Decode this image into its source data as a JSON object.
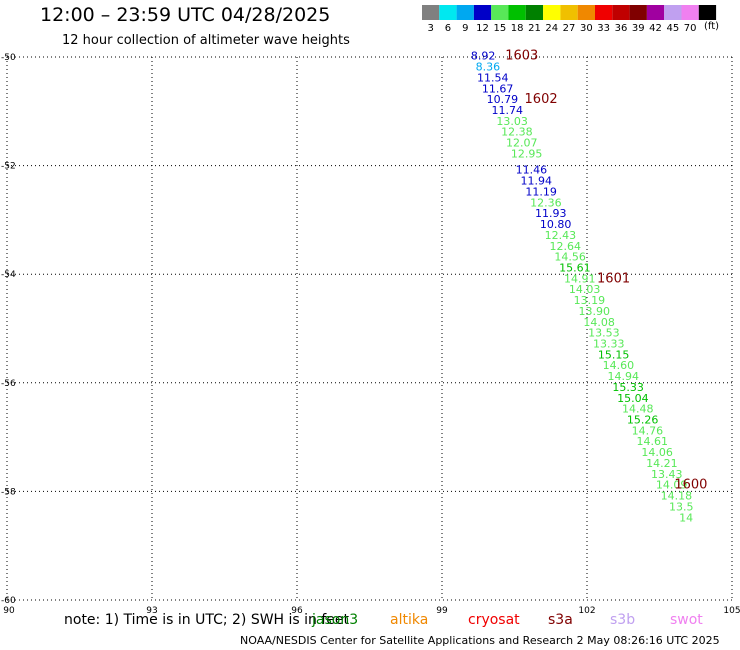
{
  "header": {
    "title": "12:00 – 23:59 UTC 04/28/2025",
    "subtitle": "12 hour collection of altimeter wave heights"
  },
  "color_scale": {
    "unit": "(ft)",
    "bins": [
      {
        "label": "3",
        "color": "#808080"
      },
      {
        "label": "6",
        "color": "#00e8f0"
      },
      {
        "label": "9",
        "color": "#00a8f0"
      },
      {
        "label": "12",
        "color": "#0000c8"
      },
      {
        "label": "15",
        "color": "#58e858"
      },
      {
        "label": "18",
        "color": "#00c000"
      },
      {
        "label": "21",
        "color": "#008000"
      },
      {
        "label": "24",
        "color": "#ffff00"
      },
      {
        "label": "27",
        "color": "#f0c000"
      },
      {
        "label": "30",
        "color": "#f08800"
      },
      {
        "label": "33",
        "color": "#f00000"
      },
      {
        "label": "36",
        "color": "#c00000"
      },
      {
        "label": "39",
        "color": "#800000"
      },
      {
        "label": "42",
        "color": "#a000a0"
      },
      {
        "label": "45",
        "color": "#c0a0f0"
      },
      {
        "label": "70",
        "color": "#f080f0"
      },
      {
        "label": "",
        "color": "#000000"
      }
    ]
  },
  "chart_data": {
    "type": "scatter",
    "xlim": [
      90,
      105
    ],
    "ylim": [
      -60,
      -50
    ],
    "x_ticks": [
      90,
      93,
      96,
      99,
      102,
      105
    ],
    "y_ticks": [
      -50,
      -52,
      -54,
      -56,
      -58,
      -60
    ],
    "x_tick_labels": [
      "90",
      "93",
      "96",
      "99",
      "102",
      "105"
    ],
    "y_tick_labels": [
      "-50",
      "-52",
      "-54",
      "-56",
      "-58",
      "-60"
    ],
    "grid": true,
    "points": [
      {
        "lon": 99.85,
        "lat": -50.05,
        "label": "8.92",
        "color": "#0000c8"
      },
      {
        "lon": 99.95,
        "lat": -50.25,
        "label": "8.36",
        "color": "#00a8f0"
      },
      {
        "lon": 100.05,
        "lat": -50.45,
        "label": "11.54",
        "color": "#0000c8"
      },
      {
        "lon": 100.15,
        "lat": -50.65,
        "label": "11.67",
        "color": "#0000c8"
      },
      {
        "lon": 100.25,
        "lat": -50.85,
        "label": "10.79",
        "color": "#0000c8"
      },
      {
        "lon": 100.35,
        "lat": -51.05,
        "label": "11.74",
        "color": "#0000c8"
      },
      {
        "lon": 100.45,
        "lat": -51.25,
        "label": "13.03",
        "color": "#58e858"
      },
      {
        "lon": 100.55,
        "lat": -51.45,
        "label": "12.38",
        "color": "#58e858"
      },
      {
        "lon": 100.65,
        "lat": -51.65,
        "label": "12.07",
        "color": "#58e858"
      },
      {
        "lon": 100.75,
        "lat": -51.85,
        "label": "12.95",
        "color": "#58e858"
      },
      {
        "lon": 100.85,
        "lat": -52.15,
        "label": "11.46",
        "color": "#0000c8"
      },
      {
        "lon": 100.95,
        "lat": -52.35,
        "label": "11.94",
        "color": "#0000c8"
      },
      {
        "lon": 101.05,
        "lat": -52.55,
        "label": "11.19",
        "color": "#0000c8"
      },
      {
        "lon": 101.15,
        "lat": -52.75,
        "label": "12.36",
        "color": "#58e858"
      },
      {
        "lon": 101.25,
        "lat": -52.95,
        "label": "11.93",
        "color": "#0000c8"
      },
      {
        "lon": 101.35,
        "lat": -53.15,
        "label": "10.80",
        "color": "#0000c8"
      },
      {
        "lon": 101.45,
        "lat": -53.35,
        "label": "12.43",
        "color": "#58e858"
      },
      {
        "lon": 101.55,
        "lat": -53.55,
        "label": "12.64",
        "color": "#58e858"
      },
      {
        "lon": 101.65,
        "lat": -53.75,
        "label": "14.56",
        "color": "#58e858"
      },
      {
        "lon": 101.75,
        "lat": -53.95,
        "label": "15.61",
        "color": "#00c000"
      },
      {
        "lon": 101.85,
        "lat": -54.15,
        "label": "14.91",
        "color": "#58e858"
      },
      {
        "lon": 101.95,
        "lat": -54.35,
        "label": "14.03",
        "color": "#58e858"
      },
      {
        "lon": 102.05,
        "lat": -54.55,
        "label": "13.19",
        "color": "#58e858"
      },
      {
        "lon": 102.15,
        "lat": -54.75,
        "label": "13.90",
        "color": "#58e858"
      },
      {
        "lon": 102.25,
        "lat": -54.95,
        "label": "14.08",
        "color": "#58e858"
      },
      {
        "lon": 102.35,
        "lat": -55.15,
        "label": "13.53",
        "color": "#58e858"
      },
      {
        "lon": 102.45,
        "lat": -55.35,
        "label": "13.33",
        "color": "#58e858"
      },
      {
        "lon": 102.55,
        "lat": -55.55,
        "label": "15.15",
        "color": "#00c000"
      },
      {
        "lon": 102.65,
        "lat": -55.75,
        "label": "14.60",
        "color": "#58e858"
      },
      {
        "lon": 102.75,
        "lat": -55.95,
        "label": "14.94",
        "color": "#58e858"
      },
      {
        "lon": 102.85,
        "lat": -56.15,
        "label": "15.33",
        "color": "#00c000"
      },
      {
        "lon": 102.95,
        "lat": -56.35,
        "label": "15.04",
        "color": "#00c000"
      },
      {
        "lon": 103.05,
        "lat": -56.55,
        "label": "14.48",
        "color": "#58e858"
      },
      {
        "lon": 103.15,
        "lat": -56.75,
        "label": "15.26",
        "color": "#00c000"
      },
      {
        "lon": 103.25,
        "lat": -56.95,
        "label": "14.76",
        "color": "#58e858"
      },
      {
        "lon": 103.35,
        "lat": -57.15,
        "label": "14.61",
        "color": "#58e858"
      },
      {
        "lon": 103.45,
        "lat": -57.35,
        "label": "14.06",
        "color": "#58e858"
      },
      {
        "lon": 103.55,
        "lat": -57.55,
        "label": "14.21",
        "color": "#58e858"
      },
      {
        "lon": 103.65,
        "lat": -57.75,
        "label": "13.43",
        "color": "#58e858"
      },
      {
        "lon": 103.75,
        "lat": -57.95,
        "label": "14.09",
        "color": "#58e858"
      },
      {
        "lon": 103.85,
        "lat": -58.15,
        "label": "14.18",
        "color": "#58e858"
      },
      {
        "lon": 103.95,
        "lat": -58.35,
        "label": "13.5",
        "color": "#58e858"
      },
      {
        "lon": 104.05,
        "lat": -58.55,
        "label": "14",
        "color": "#58e858"
      }
    ],
    "time_markers": [
      {
        "lon": 100.65,
        "lat": -50.05,
        "label": "1603",
        "color": "#800000"
      },
      {
        "lon": 101.05,
        "lat": -50.85,
        "label": "1602",
        "color": "#800000"
      },
      {
        "lon": 102.55,
        "lat": -54.15,
        "label": "1601",
        "color": "#800000"
      },
      {
        "lon": 104.15,
        "lat": -57.95,
        "label": "1600",
        "color": "#800000"
      }
    ]
  },
  "footer": {
    "note": "note: 1) Time is in UTC; 2) SWH is in feet",
    "missions": [
      {
        "label": "jason3",
        "color": "#008000"
      },
      {
        "label": "altika",
        "color": "#f08800"
      },
      {
        "label": "cryosat",
        "color": "#f00000"
      },
      {
        "label": "s3a",
        "color": "#800000"
      },
      {
        "label": "s3b",
        "color": "#c0a0f0"
      },
      {
        "label": "swot",
        "color": "#f080f0"
      }
    ],
    "credit": "NOAA/NESDIS Center for Satellite Applications and Research     2 May 08:26:16 UTC 2025"
  }
}
